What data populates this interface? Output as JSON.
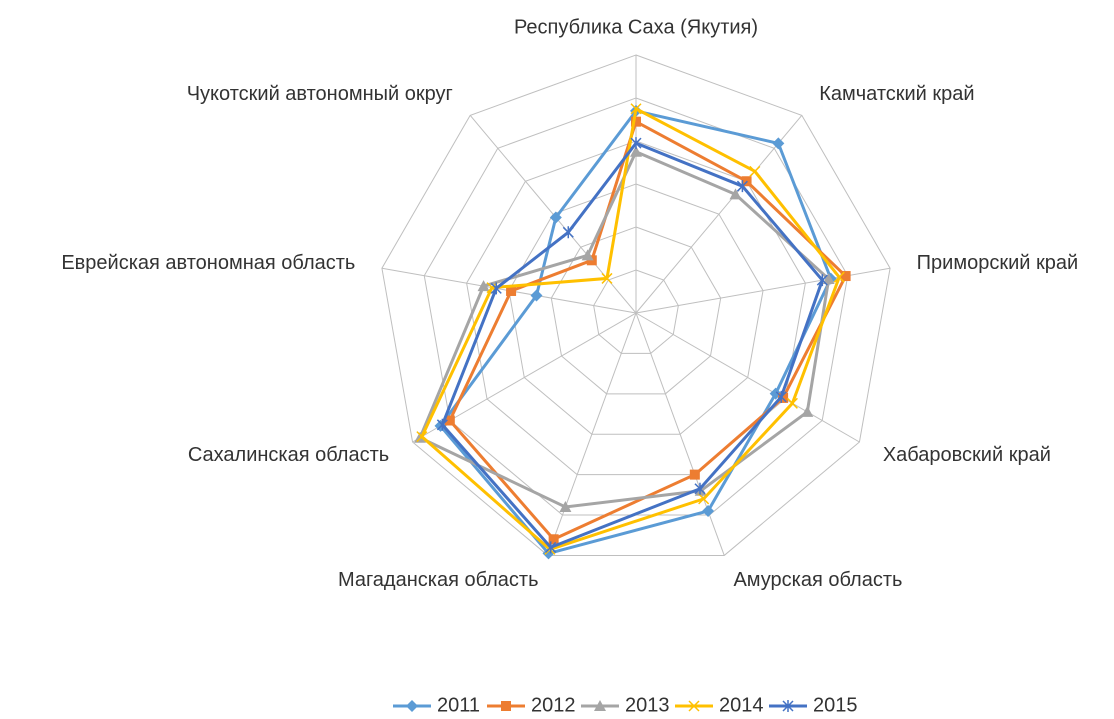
{
  "chart_data": {
    "type": "radar",
    "categories": [
      "Республика Саха (Якутия)",
      "Камчатский край",
      "Приморский край",
      "Хабаровский край",
      "Амурская область",
      "Магаданская область",
      "Сахалинская область",
      "Еврейская автономная область",
      "Чукотский автономный округ"
    ],
    "series": [
      {
        "name": "2011",
        "color": "#5b9bd5",
        "marker": "diamond",
        "values": [
          4.7,
          5.15,
          4.6,
          3.75,
          4.9,
          5.95,
          5.25,
          2.35,
          2.9
        ]
      },
      {
        "name": "2012",
        "color": "#ed7d31",
        "marker": "square",
        "values": [
          4.45,
          4.0,
          4.95,
          3.95,
          4.0,
          5.6,
          5.0,
          2.95,
          1.6
        ]
      },
      {
        "name": "2013",
        "color": "#a5a5a5",
        "marker": "triangle",
        "values": [
          3.75,
          3.6,
          4.55,
          4.6,
          4.4,
          4.8,
          5.8,
          3.6,
          1.75
        ]
      },
      {
        "name": "2014",
        "color": "#ffc000",
        "marker": "x",
        "values": [
          4.75,
          4.3,
          4.8,
          4.2,
          4.6,
          5.85,
          5.75,
          3.4,
          1.05
        ]
      },
      {
        "name": "2015",
        "color": "#4472c4",
        "marker": "star",
        "values": [
          3.95,
          3.85,
          4.4,
          3.9,
          4.35,
          5.8,
          5.2,
          3.3,
          2.45
        ]
      }
    ],
    "ylim": [
      0,
      6
    ],
    "yticks": [
      0,
      1,
      2,
      3,
      4,
      5,
      6
    ],
    "grid": true,
    "legend": "bottom"
  }
}
